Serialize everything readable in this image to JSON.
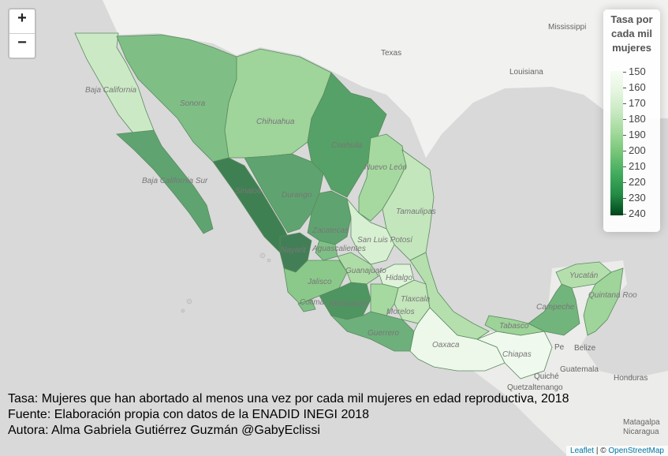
{
  "zoom": {
    "in_label": "+",
    "out_label": "−"
  },
  "legend": {
    "title": [
      "Tasa por",
      "cada mil",
      "mujeres"
    ],
    "labels": [
      "150",
      "160",
      "170",
      "180",
      "190",
      "200",
      "210",
      "220",
      "230",
      "240"
    ]
  },
  "caption": [
    "Tasa: Mujeres que han abortado al menos una vez por cada mil mujeres en edad reproductiva, 2018",
    "Fuente: Elaboración propia con datos de la ENADID INEGI 2018",
    "Autora: Alma Gabriela Gutiérrez Guzmán @GabyEclissi"
  ],
  "attribution": {
    "leaflet": "Leaflet",
    "sep": " | © ",
    "osm": "OpenStreetMap"
  },
  "map_labels": {
    "states": [
      "Baja California",
      "Sonora",
      "Chihuahua",
      "Coahuila",
      "Baja California Sur",
      "Sinaloa",
      "Durango",
      "Nuevo León",
      "Tamaulipas",
      "Zacatecas",
      "San Luis Potosí",
      "Nayarit",
      "Aguascalientes",
      "Guanajuato",
      "Jalisco",
      "Hidalgo",
      "Tlaxcala",
      "Colima",
      "Michoacán",
      "Morelos",
      "Guerrero",
      "Oaxaca",
      "Yucatán",
      "Quintana Roo",
      "Campeche",
      "Tabasco",
      "Chiapas"
    ],
    "other": [
      "Texas",
      "Mississippi",
      "Louisiana",
      "Belize",
      "Guatemala",
      "Honduras",
      "Quetzaltenango",
      "Matagalpa",
      "Nicaragua",
      "Quiché",
      "Pe"
    ]
  },
  "colors": {
    "water": "#d9d9d9",
    "land": "#f1f1ef",
    "accent": "#41ab5d"
  }
}
